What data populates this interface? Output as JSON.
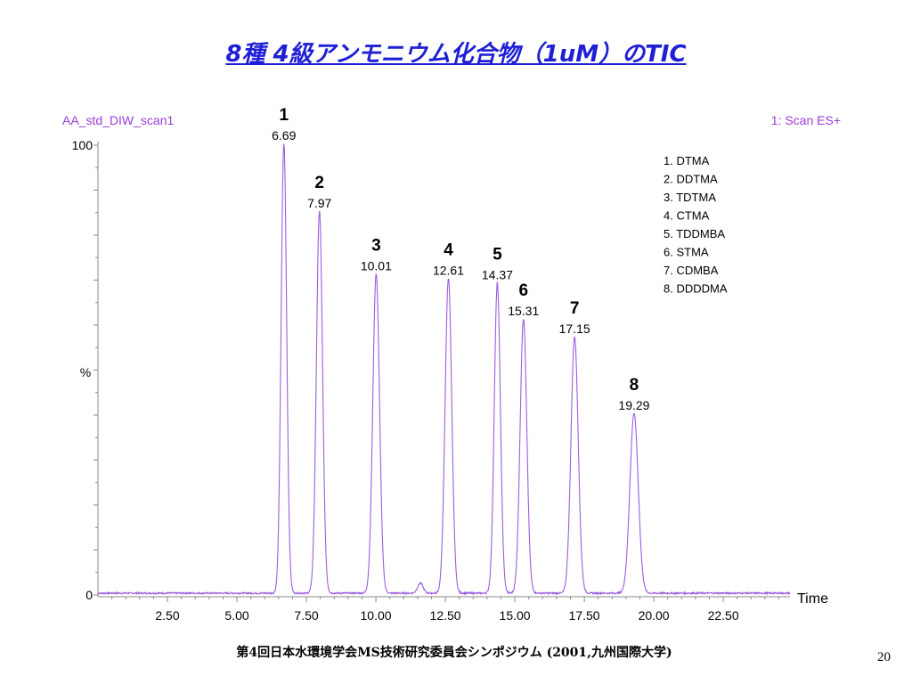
{
  "slide": {
    "title": "8種 4級アンモニウム化合物（1uM）のTIC",
    "footer": "第4回日本水環境学会MS技術研究委員会シンポジウム (2001,九州国際大学)",
    "page_number": "20"
  },
  "chart_data": {
    "type": "line",
    "sample_name": "AA_std_DIW_scan1",
    "scan_mode": "1: Scan ES+",
    "xlabel": "Time",
    "ylabel": "%",
    "xlim": [
      0,
      24.9
    ],
    "ylim": [
      0,
      100
    ],
    "x_ticks": [
      "2.50",
      "5.00",
      "7.50",
      "10.00",
      "12.50",
      "15.00",
      "17.50",
      "20.00",
      "22.50"
    ],
    "y_ticks": [
      "0",
      "100"
    ],
    "series_color": "#9b5ee0",
    "peaks": [
      {
        "number": "1",
        "rt": "6.69",
        "time": 6.69,
        "height": 100,
        "width": 0.1
      },
      {
        "number": "2",
        "rt": "7.97",
        "time": 7.97,
        "height": 85,
        "width": 0.11
      },
      {
        "number": "3",
        "rt": "10.01",
        "time": 10.01,
        "height": 71,
        "width": 0.12
      },
      {
        "number": "4",
        "rt": "12.61",
        "time": 12.61,
        "height": 70,
        "width": 0.12
      },
      {
        "number": "5",
        "rt": "14.37",
        "time": 14.37,
        "height": 69,
        "width": 0.11
      },
      {
        "number": "6",
        "rt": "15.31",
        "time": 15.31,
        "height": 61,
        "width": 0.12
      },
      {
        "number": "7",
        "rt": "17.15",
        "time": 17.15,
        "height": 57,
        "width": 0.13
      },
      {
        "number": "8",
        "rt": "19.29",
        "time": 19.29,
        "height": 40,
        "width": 0.15
      }
    ],
    "minor_peaks": [
      {
        "time": 11.6,
        "height": 2.2,
        "width": 0.1
      }
    ],
    "legend": [
      "1. DTMA",
      "2. DDTMA",
      "3. TDTMA",
      "4. CTMA",
      "5. TDDMBA",
      "6. STMA",
      "7. CDMBA",
      "8. DDDDMA"
    ]
  }
}
